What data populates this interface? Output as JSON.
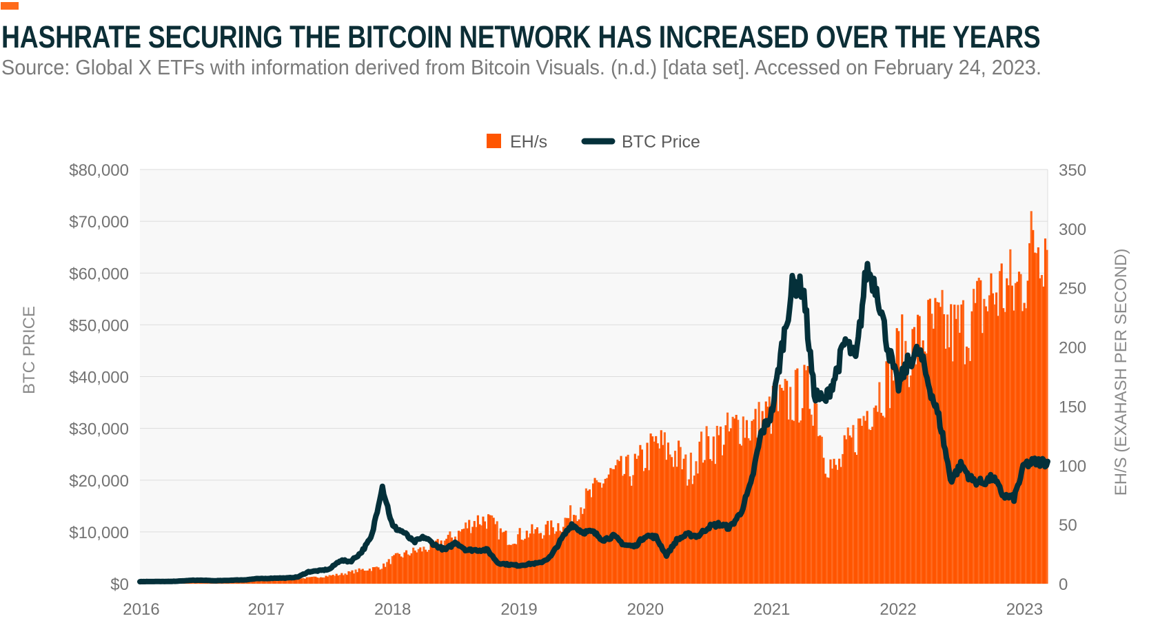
{
  "header": {
    "title": "HASHRATE SECURING THE BITCOIN NETWORK HAS INCREASED OVER THE YEARS",
    "subtitle": "Source: Global X ETFs with information derived from Bitcoin Visuals. (n.d.) [data set]. Accessed on February 24, 2023."
  },
  "chart_data": {
    "type": "bar+line",
    "title": "HASHRATE SECURING THE BITCOIN NETWORK HAS INCREASED OVER THE YEARS",
    "ylabel_left": "BTC PRICE",
    "ylabel_right": "EH/S (EXAHASH PER SECOND)",
    "ylim_left": [
      0,
      80000
    ],
    "ylim_right": [
      0,
      350
    ],
    "xlim": [
      "2016-01",
      "2023-03"
    ],
    "grid": true,
    "legend_position": "top-center",
    "x_ticks": [
      "2016",
      "2017",
      "2018",
      "2019",
      "2020",
      "2021",
      "2022",
      "2023"
    ],
    "y_left_ticks": [
      "$0",
      "$10,000",
      "$20,000",
      "$30,000",
      "$40,000",
      "$50,000",
      "$60,000",
      "$70,000",
      "$80,000"
    ],
    "y_right_ticks": [
      "0",
      "50",
      "100",
      "150",
      "200",
      "250",
      "300",
      "350"
    ],
    "colors": {
      "hashrate": "#ff5500",
      "price": "#04303a",
      "title": "#0c2e36"
    },
    "months": [
      "2016-01",
      "2016-02",
      "2016-03",
      "2016-04",
      "2016-05",
      "2016-06",
      "2016-07",
      "2016-08",
      "2016-09",
      "2016-10",
      "2016-11",
      "2016-12",
      "2017-01",
      "2017-02",
      "2017-03",
      "2017-04",
      "2017-05",
      "2017-06",
      "2017-07",
      "2017-08",
      "2017-09",
      "2017-10",
      "2017-11",
      "2017-12",
      "2018-01",
      "2018-02",
      "2018-03",
      "2018-04",
      "2018-05",
      "2018-06",
      "2018-07",
      "2018-08",
      "2018-09",
      "2018-10",
      "2018-11",
      "2018-12",
      "2019-01",
      "2019-02",
      "2019-03",
      "2019-04",
      "2019-05",
      "2019-06",
      "2019-07",
      "2019-08",
      "2019-09",
      "2019-10",
      "2019-11",
      "2019-12",
      "2020-01",
      "2020-02",
      "2020-03",
      "2020-04",
      "2020-05",
      "2020-06",
      "2020-07",
      "2020-08",
      "2020-09",
      "2020-10",
      "2020-11",
      "2020-12",
      "2021-01",
      "2021-02",
      "2021-03",
      "2021-04",
      "2021-05",
      "2021-06",
      "2021-07",
      "2021-08",
      "2021-09",
      "2021-10",
      "2021-11",
      "2021-12",
      "2022-01",
      "2022-02",
      "2022-03",
      "2022-04",
      "2022-05",
      "2022-06",
      "2022-07",
      "2022-08",
      "2022-09",
      "2022-10",
      "2022-11",
      "2022-12",
      "2023-01",
      "2023-02"
    ],
    "series": [
      {
        "name": "EH/s",
        "type": "bar",
        "axis": "right",
        "values": [
          0.8,
          0.9,
          1.1,
          1.2,
          1.3,
          1.4,
          1.5,
          1.6,
          1.8,
          2.0,
          2.2,
          2.5,
          3,
          3.5,
          4,
          4.5,
          5,
          6,
          7,
          8,
          10,
          12,
          13,
          15,
          22,
          25,
          28,
          30,
          33,
          38,
          42,
          50,
          55,
          55,
          45,
          38,
          42,
          44,
          45,
          48,
          52,
          60,
          70,
          78,
          90,
          95,
          95,
          100,
          110,
          120,
          115,
          110,
          95,
          115,
          120,
          125,
          130,
          140,
          135,
          140,
          150,
          155,
          160,
          165,
          160,
          110,
          95,
          115,
          130,
          150,
          165,
          175,
          200,
          200,
          210,
          220,
          220,
          215,
          220,
          230,
          240,
          250,
          255,
          250,
          270,
          300
        ]
      },
      {
        "name": "BTC Price",
        "type": "line",
        "axis": "left",
        "values": [
          400,
          420,
          415,
          440,
          530,
          670,
          660,
          575,
          610,
          700,
          740,
          960,
          1000,
          1100,
          1100,
          1300,
          2300,
          2500,
          2800,
          4500,
          4300,
          6000,
          9000,
          19000,
          11000,
          10000,
          8000,
          9000,
          7500,
          6500,
          8000,
          6500,
          6500,
          6500,
          4000,
          3700,
          3500,
          3800,
          4000,
          5200,
          8500,
          11500,
          10000,
          10000,
          8500,
          9200,
          7500,
          7200,
          9300,
          9000,
          5500,
          8500,
          9500,
          9200,
          11000,
          11500,
          10800,
          13500,
          19000,
          29000,
          33000,
          46000,
          58000,
          57000,
          37000,
          35000,
          40000,
          47000,
          43000,
          61000,
          57000,
          46000,
          38000,
          43000,
          45000,
          38000,
          31000,
          20000,
          23000,
          20000,
          19500,
          20500,
          17000,
          16500,
          23000,
          23500
        ]
      }
    ]
  }
}
